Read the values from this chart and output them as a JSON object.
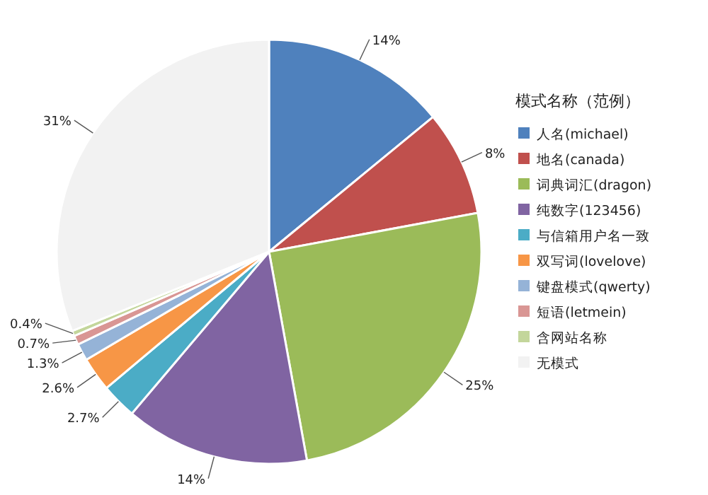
{
  "chart_data": {
    "type": "pie",
    "legend_title": "模式名称（范例）",
    "categories": [
      "人名(michael)",
      "地名(canada)",
      "词典词汇(dragon)",
      "纯数字(123456)",
      "与信箱用户名一致",
      "双写词(lovelove)",
      "键盘模式(qwerty)",
      "短语(letmein)",
      "含网站名称",
      "无模式"
    ],
    "values": [
      14,
      8,
      25,
      14,
      2.7,
      2.6,
      1.3,
      0.7,
      0.4,
      31
    ],
    "value_labels": [
      "14%",
      "8%",
      "25%",
      "14%",
      "2.7%",
      "2.6%",
      "1.3%",
      "0.7%",
      "0.4%",
      "31%"
    ],
    "colors": [
      "#4f81bd",
      "#c0504d",
      "#9bbb59",
      "#8064a2",
      "#4bacc6",
      "#f79646",
      "#95b3d7",
      "#d99694",
      "#c3d69b",
      "#f2f2f2"
    ],
    "legend": "right"
  }
}
